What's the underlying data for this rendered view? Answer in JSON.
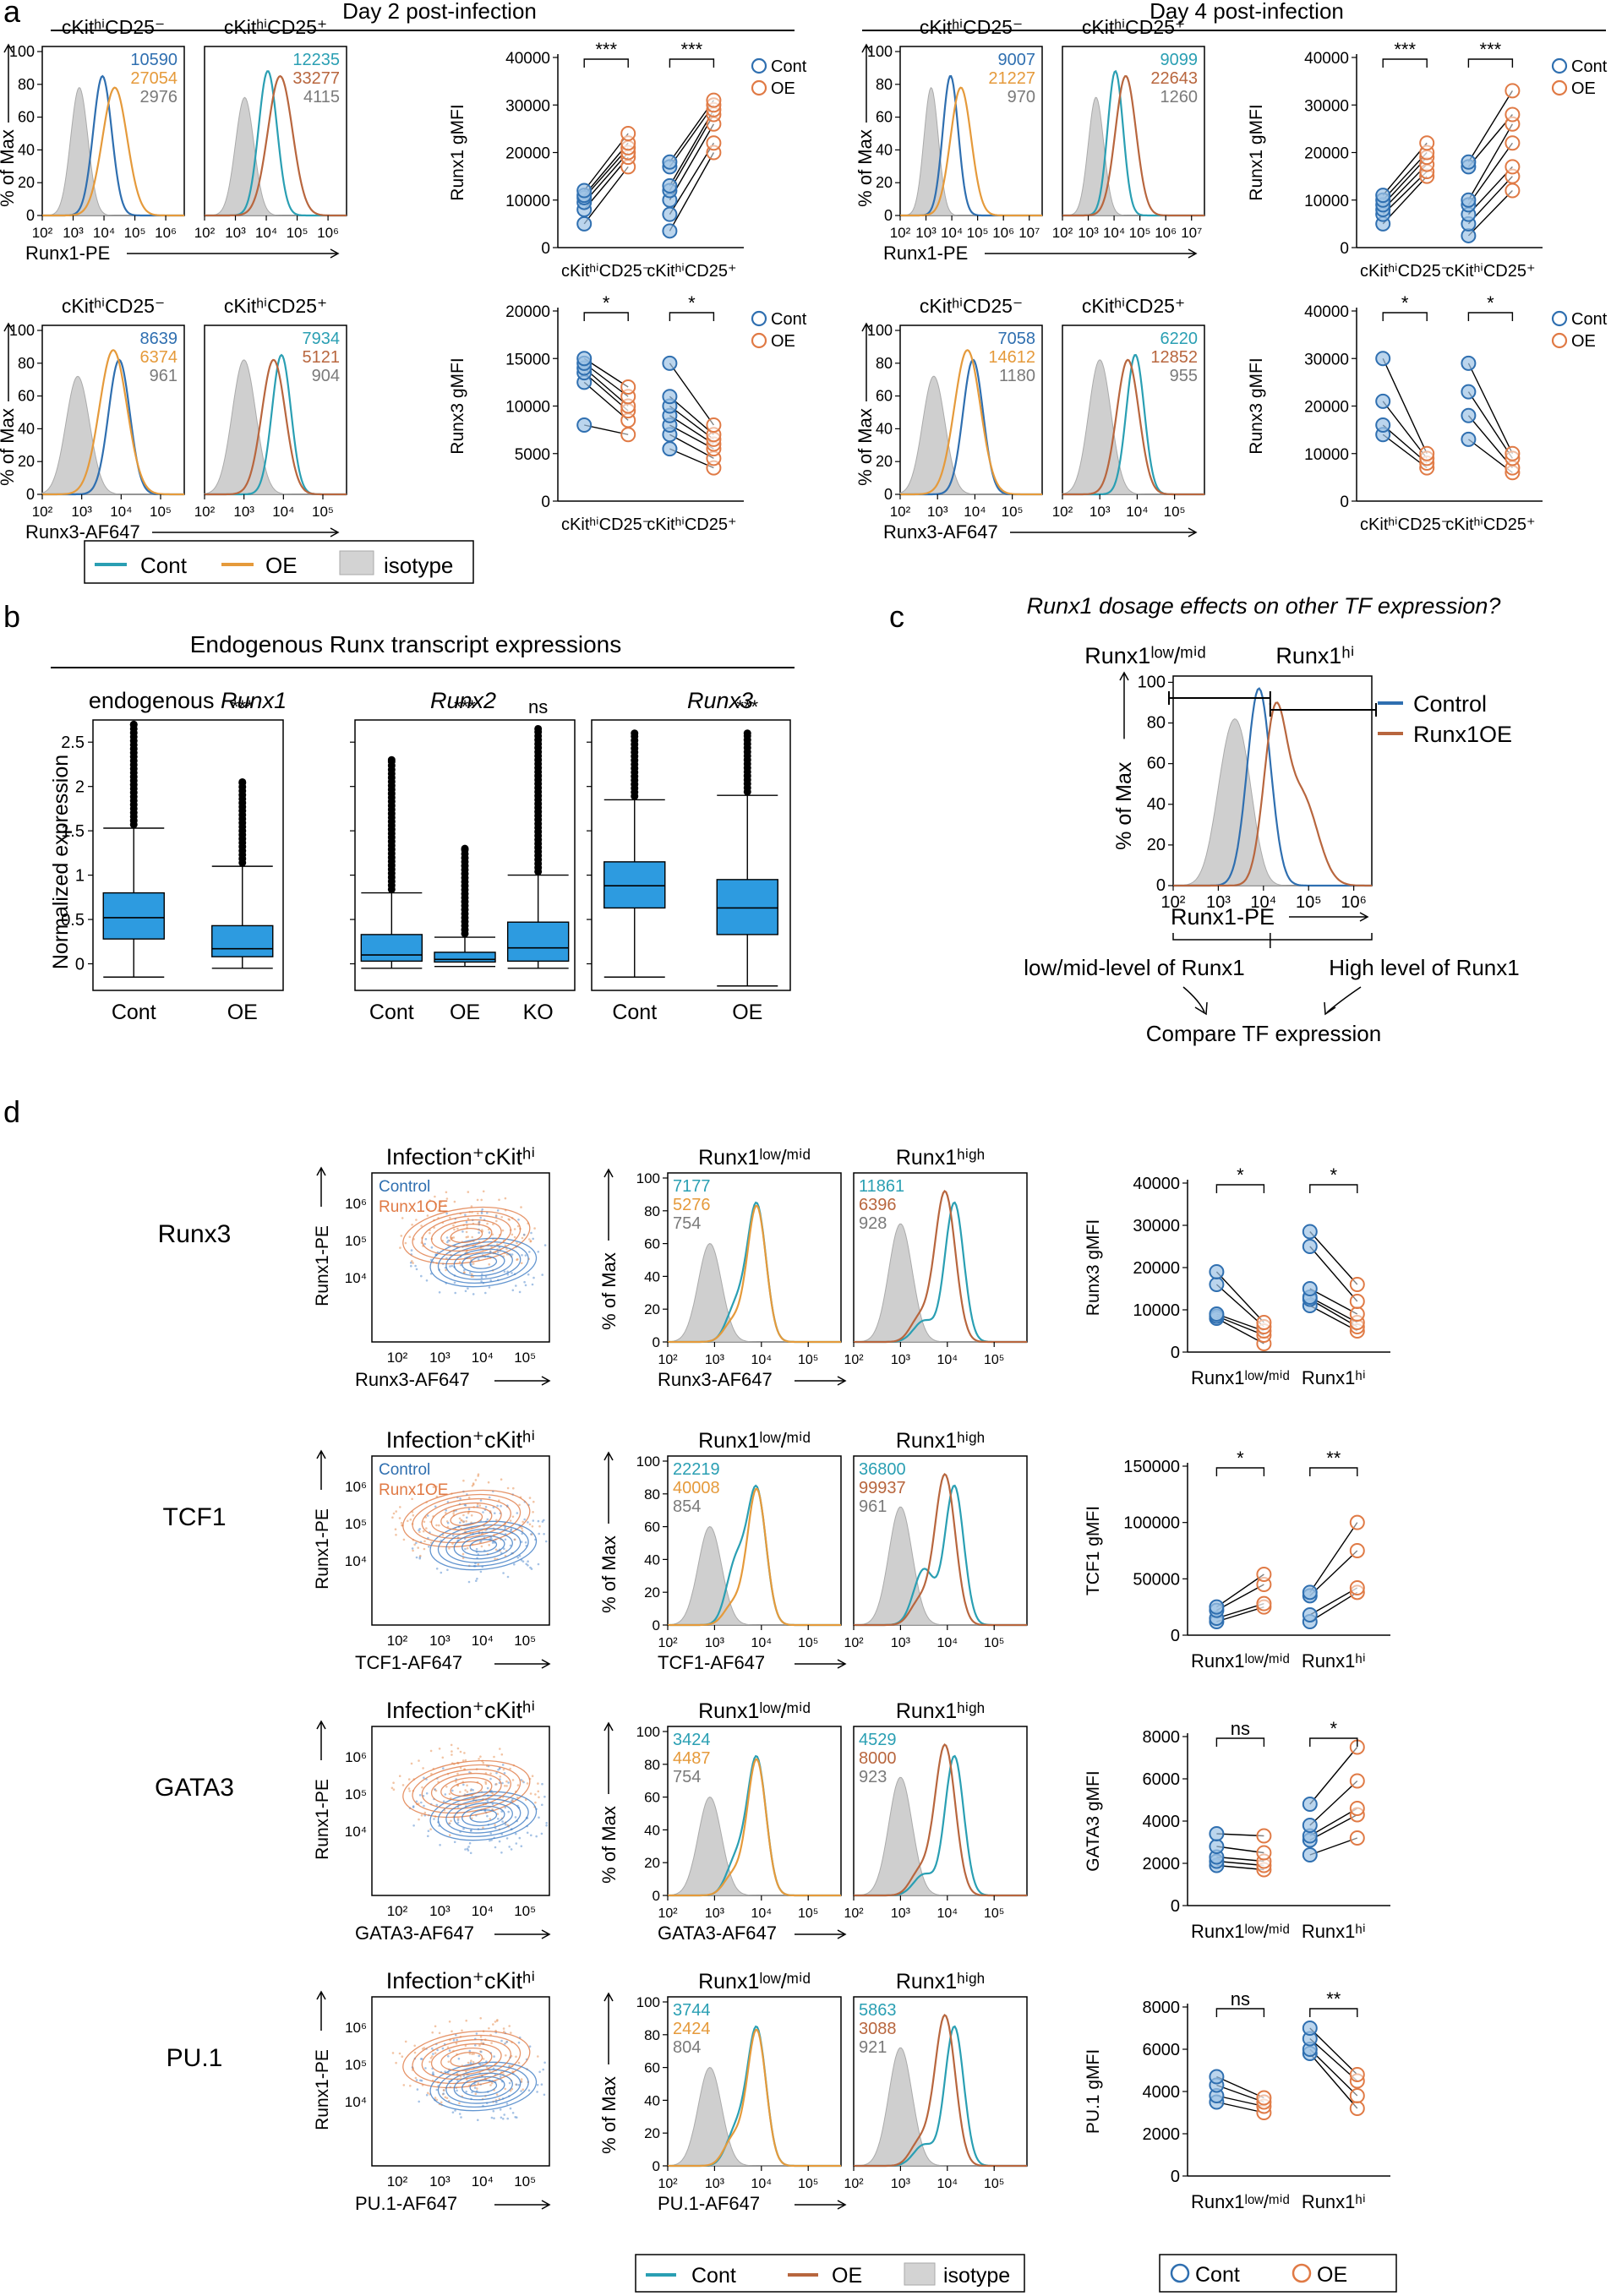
{
  "colors": {
    "cont": "#2a9fb3",
    "cont_blue": "#2f6fb0",
    "oe": "#e59a3b",
    "oe_brown": "#b8663e",
    "isotype": "#cfcfcf",
    "box": "#2d9be0",
    "gray_text": "#7a7a7a"
  },
  "panels": {
    "a": "a",
    "b": "b",
    "c": "c",
    "d": "d"
  },
  "panel_a": {
    "day2_title": "Day 2 post-infection",
    "day4_title": "Day 4 post-infection",
    "y_hist_label": "% of Max",
    "hist_yticks": [
      "0",
      "20",
      "40",
      "60",
      "80",
      "100"
    ],
    "hist_xticks_d2": [
      "10²",
      "10³",
      "10⁴",
      "10⁵",
      "10⁶"
    ],
    "hist_xticks_d4": [
      "10²",
      "10³",
      "10⁴",
      "10⁵",
      "10⁶",
      "10⁷"
    ],
    "hist_xticks_runx3": [
      "10²",
      "10³",
      "10⁴",
      "10⁵"
    ],
    "gate_cd25neg": "cKitʰⁱCD25⁻",
    "gate_cd25pos": "cKitʰⁱCD25⁺",
    "xlabel_runx1": "Runx1-PE",
    "xlabel_runx3": "Runx3-AF647",
    "mfi": {
      "d2_runx1_neg": [
        "10590",
        "27054",
        "2976"
      ],
      "d2_runx1_pos": [
        "12235",
        "33277",
        "4115"
      ],
      "d2_runx3_neg": [
        "8639",
        "6374",
        "961"
      ],
      "d2_runx3_pos": [
        "7934",
        "5121",
        "904"
      ],
      "d4_runx1_neg": [
        "9007",
        "21227",
        "970"
      ],
      "d4_runx1_pos": [
        "9099",
        "22643",
        "1260"
      ],
      "d4_runx3_neg": [
        "7058",
        "14612",
        "1180"
      ],
      "d4_runx3_pos": [
        "6220",
        "12852",
        "955"
      ]
    },
    "legend": {
      "cont": "Cont",
      "oe": "OE",
      "isotype": "isotype"
    },
    "paired_legend": {
      "cont": "Cont",
      "oe": "OE"
    },
    "sig_stars3": "***",
    "sig_star1": "*"
  },
  "chart_data": [
    {
      "id": "a_d2_runx1",
      "type": "scatter",
      "title": "",
      "ylabel": "Runx1 gMFI",
      "categories": [
        "cKitʰⁱCD25⁻",
        "cKitʰⁱCD25⁺"
      ],
      "ylim": [
        0,
        40000
      ],
      "yticks": [
        0,
        10000,
        20000,
        30000,
        40000
      ],
      "significance": [
        "***",
        "***"
      ],
      "series": [
        {
          "name": "Cont",
          "group": "cKitʰⁱCD25⁻",
          "values": [
            5000,
            8000,
            9500,
            10500,
            11000,
            12000
          ]
        },
        {
          "name": "OE",
          "group": "cKitʰⁱCD25⁻",
          "values": [
            17000,
            19000,
            20000,
            21000,
            22000,
            24000
          ]
        },
        {
          "name": "Cont",
          "group": "cKitʰⁱCD25⁺",
          "values": [
            3500,
            7000,
            10000,
            12000,
            13000,
            17000,
            18000
          ]
        },
        {
          "name": "OE",
          "group": "cKitʰⁱCD25⁺",
          "values": [
            20000,
            22000,
            26000,
            28000,
            29000,
            30000,
            31000
          ]
        }
      ]
    },
    {
      "id": "a_d2_runx3",
      "type": "scatter",
      "ylabel": "Runx3 gMFI",
      "categories": [
        "cKitʰⁱCD25⁻",
        "cKitʰⁱCD25⁺"
      ],
      "ylim": [
        0,
        20000
      ],
      "yticks": [
        0,
        5000,
        10000,
        15000,
        20000
      ],
      "significance": [
        "*",
        "*"
      ],
      "series": [
        {
          "name": "Cont",
          "group": "cKitʰⁱCD25⁻",
          "values": [
            8000,
            12500,
            13500,
            14000,
            14500,
            15000
          ]
        },
        {
          "name": "OE",
          "group": "cKitʰⁱCD25⁻",
          "values": [
            7000,
            8500,
            9500,
            10000,
            11000,
            12000
          ]
        },
        {
          "name": "Cont",
          "group": "cKitʰⁱCD25⁺",
          "values": [
            5500,
            7000,
            8000,
            9000,
            10000,
            11000,
            14500
          ]
        },
        {
          "name": "OE",
          "group": "cKitʰⁱCD25⁺",
          "values": [
            3500,
            4500,
            5500,
            6000,
            6500,
            7000,
            8000
          ]
        }
      ]
    },
    {
      "id": "a_d4_runx1",
      "type": "scatter",
      "ylabel": "Runx1 gMFI",
      "categories": [
        "cKitʰⁱCD25⁻",
        "cKitʰⁱCD25⁺"
      ],
      "ylim": [
        0,
        40000
      ],
      "yticks": [
        0,
        10000,
        20000,
        30000,
        40000
      ],
      "significance": [
        "***",
        "***"
      ],
      "series": [
        {
          "name": "Cont",
          "group": "cKitʰⁱCD25⁻",
          "values": [
            5000,
            7000,
            8000,
            9000,
            10000,
            11000
          ]
        },
        {
          "name": "OE",
          "group": "cKitʰⁱCD25⁻",
          "values": [
            15000,
            16000,
            17500,
            19000,
            20000,
            22000
          ]
        },
        {
          "name": "Cont",
          "group": "cKitʰⁱCD25⁺",
          "values": [
            2500,
            5000,
            7000,
            9000,
            10000,
            17000,
            18000
          ]
        },
        {
          "name": "OE",
          "group": "cKitʰⁱCD25⁺",
          "values": [
            12000,
            15000,
            17000,
            22000,
            26000,
            28000,
            33000
          ]
        }
      ]
    },
    {
      "id": "a_d4_runx3",
      "type": "scatter",
      "ylabel": "Runx3 gMFI",
      "categories": [
        "cKitʰⁱCD25⁻",
        "cKitʰⁱCD25⁺"
      ],
      "ylim": [
        0,
        40000
      ],
      "yticks": [
        0,
        10000,
        20000,
        30000,
        40000
      ],
      "significance": [
        "*",
        "*"
      ],
      "series": [
        {
          "name": "Cont",
          "group": "cKitʰⁱCD25⁻",
          "values": [
            14000,
            16000,
            21000,
            30000
          ]
        },
        {
          "name": "OE",
          "group": "cKitʰⁱCD25⁻",
          "values": [
            7000,
            8000,
            9000,
            10000
          ]
        },
        {
          "name": "Cont",
          "group": "cKitʰⁱCD25⁺",
          "values": [
            13000,
            18000,
            23000,
            29000
          ]
        },
        {
          "name": "OE",
          "group": "cKitʰⁱCD25⁺",
          "values": [
            6000,
            7000,
            9000,
            10000
          ]
        }
      ]
    },
    {
      "id": "b_boxplots",
      "type": "box",
      "title": "Endogenous Runx transcript expressions",
      "ylabel": "Normalized expression",
      "ylim": [
        -0.3,
        2.75
      ],
      "yticks": [
        0,
        0.5,
        1,
        1.5,
        2,
        2.5
      ],
      "panels": [
        {
          "title": "endogenous Runx1",
          "categories": [
            "Cont",
            "OE"
          ],
          "significance": [
            "",
            "***"
          ],
          "boxes": [
            {
              "q1": 0.28,
              "median": 0.52,
              "q3": 0.8,
              "wlo": -0.15,
              "whi": 1.53,
              "outmax": 2.7
            },
            {
              "q1": 0.08,
              "median": 0.17,
              "q3": 0.43,
              "wlo": -0.05,
              "whi": 1.1,
              "outmax": 2.05
            }
          ]
        },
        {
          "title": "Runx2",
          "categories": [
            "Cont",
            "OE",
            "KO"
          ],
          "significance": [
            "",
            "***",
            "ns"
          ],
          "boxes": [
            {
              "q1": 0.03,
              "median": 0.1,
              "q3": 0.33,
              "wlo": -0.05,
              "whi": 0.8,
              "outmax": 2.3
            },
            {
              "q1": 0.02,
              "median": 0.05,
              "q3": 0.13,
              "wlo": -0.03,
              "whi": 0.3,
              "outmax": 1.3
            },
            {
              "q1": 0.03,
              "median": 0.18,
              "q3": 0.47,
              "wlo": -0.05,
              "whi": 1.0,
              "outmax": 2.65
            }
          ]
        },
        {
          "title": "Runx3",
          "categories": [
            "Cont",
            "OE"
          ],
          "significance": [
            "",
            "***"
          ],
          "boxes": [
            {
              "q1": 0.63,
              "median": 0.88,
              "q3": 1.15,
              "wlo": -0.15,
              "whi": 1.85,
              "outmax": 2.6
            },
            {
              "q1": 0.33,
              "median": 0.63,
              "q3": 0.95,
              "wlo": -0.25,
              "whi": 1.9,
              "outmax": 2.6
            }
          ]
        }
      ]
    },
    {
      "id": "d_runx3",
      "type": "scatter",
      "ylabel": "Runx3 gMFI",
      "categories": [
        "Runx1ˡᵒʷ/ᵐⁱᵈ",
        "Runx1ʰⁱ"
      ],
      "ylim": [
        0,
        40000
      ],
      "yticks": [
        0,
        10000,
        20000,
        30000,
        40000
      ],
      "significance": [
        "*",
        "*"
      ],
      "series": [
        {
          "name": "Cont",
          "group": "low",
          "values": [
            8000,
            8500,
            9000,
            16000,
            19000
          ]
        },
        {
          "name": "OE",
          "group": "low",
          "values": [
            2000,
            4000,
            5000,
            6000,
            7000
          ]
        },
        {
          "name": "Cont",
          "group": "hi",
          "values": [
            11000,
            12500,
            13000,
            15000,
            25000,
            28500
          ]
        },
        {
          "name": "OE",
          "group": "hi",
          "values": [
            5000,
            6000,
            7000,
            9000,
            12000,
            16000
          ]
        }
      ]
    },
    {
      "id": "d_tcf1",
      "type": "scatter",
      "ylabel": "TCF1 gMFI",
      "categories": [
        "Runx1ˡᵒʷ/ᵐⁱᵈ",
        "Runx1ʰⁱ"
      ],
      "ylim": [
        0,
        150000
      ],
      "yticks": [
        0,
        50000,
        100000,
        150000
      ],
      "significance": [
        "*",
        "**"
      ],
      "series": [
        {
          "name": "Cont",
          "group": "low",
          "values": [
            12000,
            15000,
            22000,
            25000
          ]
        },
        {
          "name": "OE",
          "group": "low",
          "values": [
            25000,
            28000,
            45000,
            54000
          ]
        },
        {
          "name": "Cont",
          "group": "hi",
          "values": [
            12000,
            18000,
            35000,
            38000
          ]
        },
        {
          "name": "OE",
          "group": "hi",
          "values": [
            38000,
            42000,
            75000,
            100000
          ]
        }
      ]
    },
    {
      "id": "d_gata3",
      "type": "scatter",
      "ylabel": "GATA3 gMFI",
      "categories": [
        "Runx1ˡᵒʷ/ᵐⁱᵈ",
        "Runx1ʰⁱ"
      ],
      "ylim": [
        0,
        8000
      ],
      "yticks": [
        0,
        2000,
        4000,
        6000,
        8000
      ],
      "significance": [
        "ns",
        "*"
      ],
      "series": [
        {
          "name": "Cont",
          "group": "low",
          "values": [
            1900,
            2100,
            2300,
            2800,
            3400
          ]
        },
        {
          "name": "OE",
          "group": "low",
          "values": [
            1700,
            1900,
            2100,
            2500,
            3300
          ]
        },
        {
          "name": "Cont",
          "group": "hi",
          "values": [
            2400,
            3100,
            3300,
            3800,
            4800
          ]
        },
        {
          "name": "OE",
          "group": "hi",
          "values": [
            3200,
            4300,
            4600,
            5900,
            7500
          ]
        }
      ]
    },
    {
      "id": "d_pu1",
      "type": "scatter",
      "ylabel": "PU.1 gMFI",
      "categories": [
        "Runx1ˡᵒʷ/ᵐⁱᵈ",
        "Runx1ʰⁱ"
      ],
      "ylim": [
        0,
        8000
      ],
      "yticks": [
        0,
        2000,
        4000,
        6000,
        8000
      ],
      "significance": [
        "ns",
        "**"
      ],
      "series": [
        {
          "name": "Cont",
          "group": "low",
          "values": [
            3500,
            3800,
            4300,
            4700
          ]
        },
        {
          "name": "OE",
          "group": "low",
          "values": [
            3000,
            3300,
            3500,
            3700
          ]
        },
        {
          "name": "Cont",
          "group": "hi",
          "values": [
            5800,
            6000,
            6500,
            7000
          ]
        },
        {
          "name": "OE",
          "group": "hi",
          "values": [
            3200,
            3800,
            4500,
            4800
          ]
        }
      ]
    }
  ],
  "panel_b": {
    "title": "Endogenous Runx transcript expressions",
    "ylabel": "Normalized expression",
    "yticks": [
      "0",
      "0.5",
      "1",
      "1.5",
      "2",
      "2.5"
    ],
    "sub1_prefix": "endogenous ",
    "sub1_gene": "Runx1",
    "sub2": "Runx2",
    "sub3": "Runx3",
    "cats": {
      "cont": "Cont",
      "oe": "OE",
      "ko": "KO"
    },
    "sig": {
      "s3": "***",
      "ns": "ns"
    }
  },
  "panel_c": {
    "question": "Runx1 dosage effects on other TF expression?",
    "gate_low": "Runx1ˡᵒʷ/ᵐⁱᵈ",
    "gate_hi": "Runx1ʰⁱ",
    "legend_control": "Control",
    "legend_oe": "Runx1OE",
    "ylabel": "% of Max",
    "yticks": [
      "0",
      "20",
      "40",
      "60",
      "80",
      "100"
    ],
    "xticks": [
      "10²",
      "10³",
      "10⁴",
      "10⁵",
      "10⁶"
    ],
    "xlabel": "Runx1-PE",
    "low_text": "low/mid-level of Runx1",
    "high_text": "High level of Runx1",
    "compare_text": "Compare TF expression"
  },
  "panel_d": {
    "rows": [
      {
        "tf": "Runx3",
        "xlabel": "Runx3-AF647",
        "contour_title": "Infection⁺cKitʰⁱ",
        "mfi_low": [
          "7177",
          "5276",
          "754"
        ],
        "mfi_high": [
          "11861",
          "6396",
          "928"
        ]
      },
      {
        "tf": "TCF1",
        "xlabel": "TCF1-AF647",
        "contour_title": "Infection⁺cKitʰⁱ",
        "mfi_low": [
          "22219",
          "40008",
          "854"
        ],
        "mfi_high": [
          "36800",
          "99937",
          "961"
        ]
      },
      {
        "tf": "GATA3",
        "xlabel": "GATA3-AF647",
        "contour_title": "Infection⁺cKitʰⁱ",
        "mfi_low": [
          "3424",
          "4487",
          "754"
        ],
        "mfi_high": [
          "4529",
          "8000",
          "923"
        ]
      },
      {
        "tf": "PU.1",
        "xlabel": "PU.1-AF647",
        "contour_title": "Infection⁺cKitʰⁱ",
        "mfi_low": [
          "3744",
          "2424",
          "804"
        ],
        "mfi_high": [
          "5863",
          "3088",
          "921"
        ]
      }
    ],
    "contour_ylabel": "Runx1-PE",
    "contour_legend_control": "Control",
    "contour_legend_oe": "Runx1OE",
    "hist_title_low": "Runx1ˡᵒʷ/ᵐⁱᵈ",
    "hist_title_high": "Runx1ʰⁱᵍʰ",
    "hist_ylabel": "% of Max",
    "hist_yticks": [
      "0",
      "20",
      "40",
      "60",
      "80",
      "100"
    ],
    "contour_yticks": [
      "10⁴",
      "10⁵",
      "10⁶"
    ],
    "contour_xticks": [
      "10²",
      "10³",
      "10⁴",
      "10⁵"
    ],
    "legend": {
      "cont": "Cont",
      "oe": "OE",
      "isotype": "isotype"
    },
    "paired_legend": {
      "cont": "Cont",
      "oe": "OE"
    }
  }
}
